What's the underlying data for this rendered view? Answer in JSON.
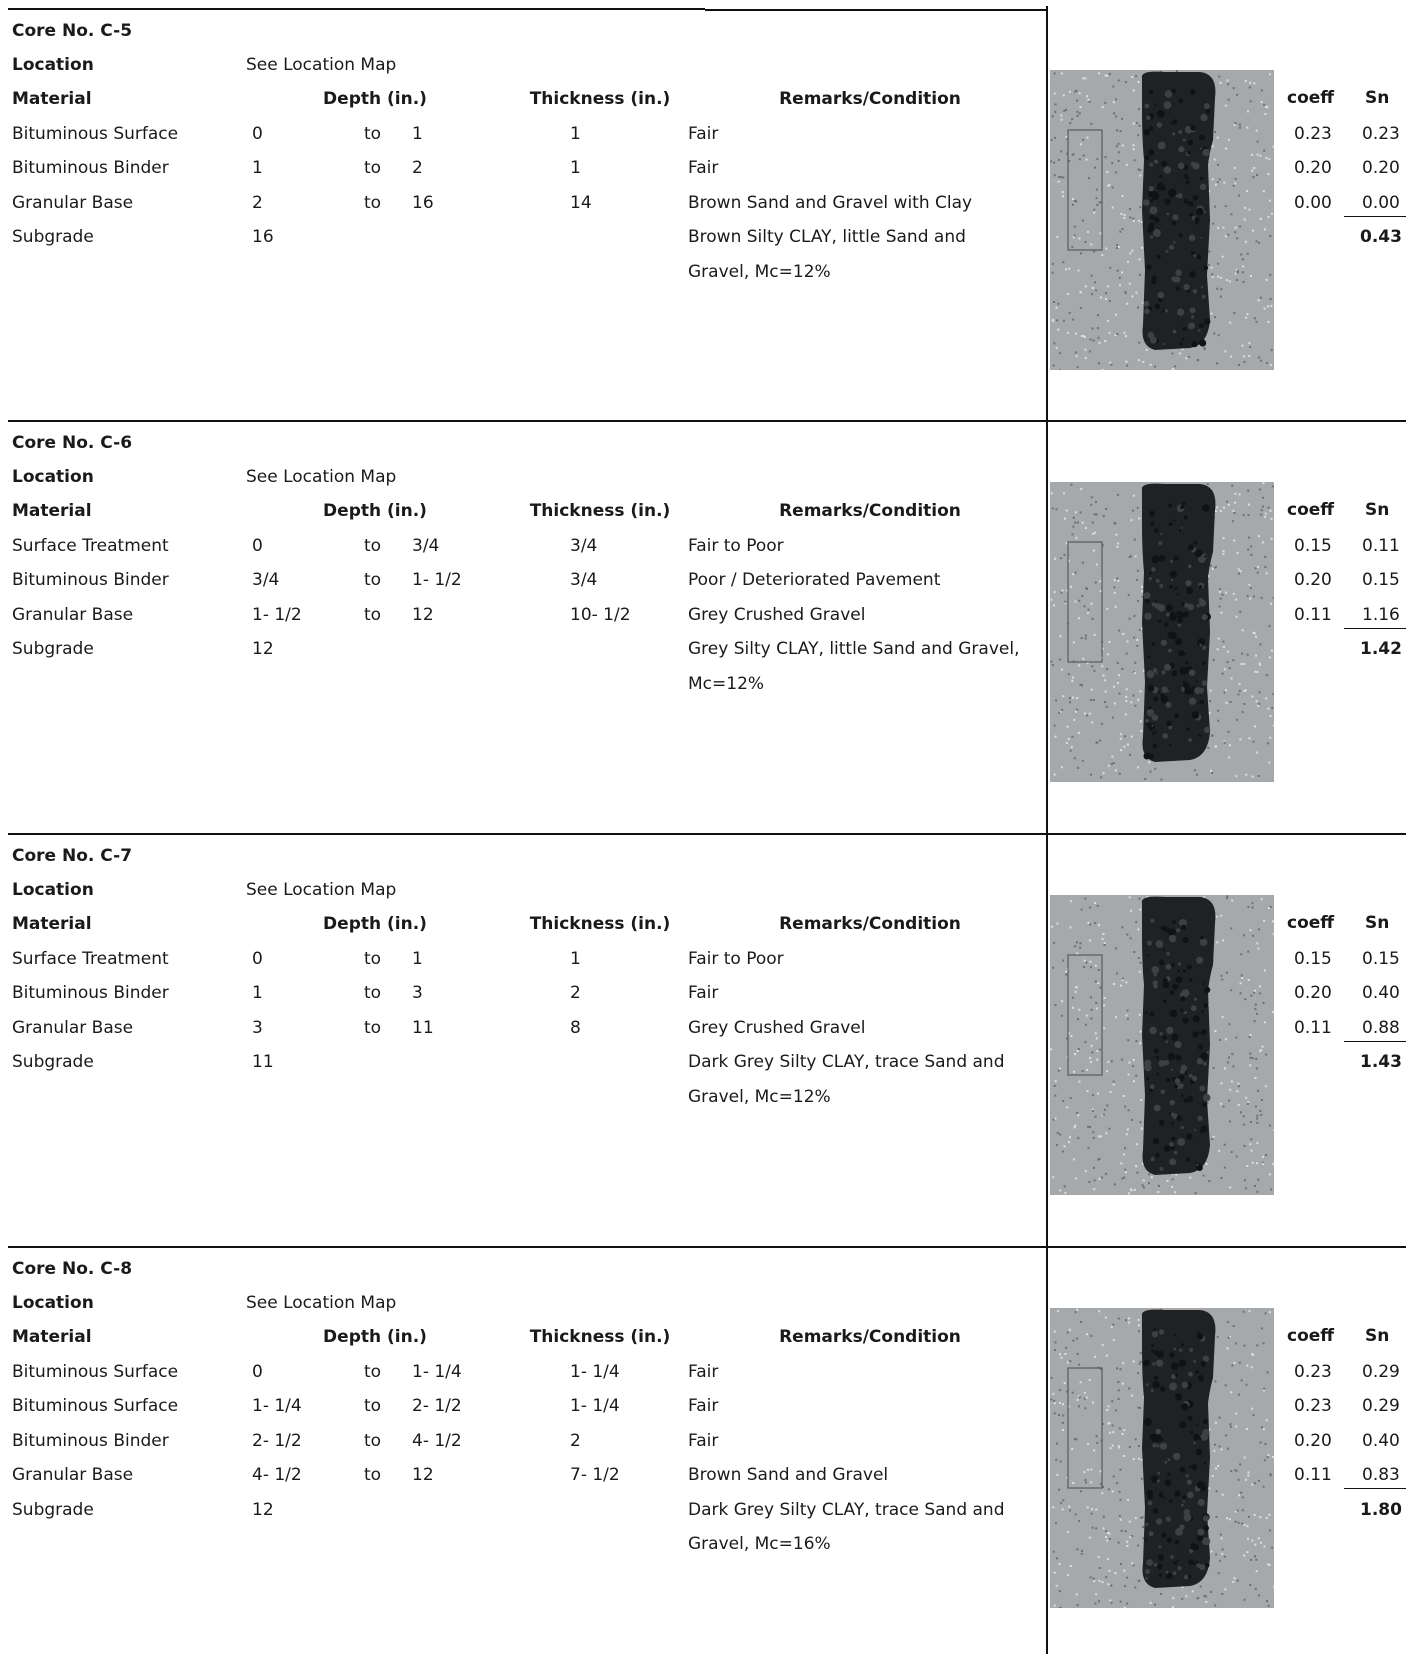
{
  "headers": {
    "location_label": "Location",
    "material_label": "Material",
    "depth_label": "Depth (in.)",
    "thickness_label": "Thickness (in.)",
    "remarks_label": "Remarks/Condition",
    "coeff_label": "coeff",
    "sn_label": "Sn"
  },
  "cores": [
    {
      "title": "Core No. C-5",
      "location": "See Location Map",
      "layers": [
        {
          "material": "Bituminous Surface",
          "from": "0",
          "to_word": "to",
          "to": "1",
          "thickness": "1",
          "remarks": [
            "Fair"
          ],
          "coeff": "0.23",
          "sn": "0.23"
        },
        {
          "material": "Bituminous Binder",
          "from": "1",
          "to_word": "to",
          "to": "2",
          "thickness": "1",
          "remarks": [
            "Fair"
          ],
          "coeff": "0.20",
          "sn": "0.20"
        },
        {
          "material": "Granular Base",
          "from": "2",
          "to_word": "to",
          "to": "16",
          "thickness": "14",
          "remarks": [
            "Brown Sand and Gravel with Clay"
          ],
          "coeff": "0.00",
          "sn": "0.00"
        },
        {
          "material": "Subgrade",
          "from": "16",
          "to_word": "",
          "to": "",
          "thickness": "",
          "remarks": [
            "Brown Silty CLAY, little Sand and",
            "Gravel, Mc=12%"
          ],
          "coeff": "",
          "sn": ""
        }
      ],
      "total_sn": "0.43"
    },
    {
      "title": "Core No. C-6",
      "location": "See Location Map",
      "layers": [
        {
          "material": "Surface Treatment",
          "from": "0",
          "to_word": "to",
          "to": "3/4",
          "thickness": "3/4",
          "remarks": [
            "Fair to Poor"
          ],
          "coeff": "0.15",
          "sn": "0.11"
        },
        {
          "material": "Bituminous Binder",
          "from": "3/4",
          "to_word": "to",
          "to": "1- 1/2",
          "thickness": "3/4",
          "remarks": [
            "Poor / Deteriorated Pavement"
          ],
          "coeff": "0.20",
          "sn": "0.15"
        },
        {
          "material": "Granular Base",
          "from": "1- 1/2",
          "to_word": "to",
          "to": "12",
          "thickness": "10- 1/2",
          "remarks": [
            "Grey Crushed Gravel"
          ],
          "coeff": "0.11",
          "sn": "1.16"
        },
        {
          "material": "Subgrade",
          "from": "12",
          "to_word": "",
          "to": "",
          "thickness": "",
          "remarks": [
            "Grey Silty CLAY, little Sand and Gravel,",
            "Mc=12%"
          ],
          "coeff": "",
          "sn": ""
        }
      ],
      "total_sn": "1.42"
    },
    {
      "title": "Core No. C-7",
      "location": "See Location Map",
      "layers": [
        {
          "material": "Surface Treatment",
          "from": "0",
          "to_word": "to",
          "to": "1",
          "thickness": "1",
          "remarks": [
            "Fair to Poor"
          ],
          "coeff": "0.15",
          "sn": "0.15"
        },
        {
          "material": "Bituminous Binder",
          "from": "1",
          "to_word": "to",
          "to": "3",
          "thickness": "2",
          "remarks": [
            "Fair"
          ],
          "coeff": "0.20",
          "sn": "0.40"
        },
        {
          "material": "Granular Base",
          "from": "3",
          "to_word": "to",
          "to": "11",
          "thickness": "8",
          "remarks": [
            "Grey Crushed Gravel"
          ],
          "coeff": "0.11",
          "sn": "0.88"
        },
        {
          "material": "Subgrade",
          "from": "11",
          "to_word": "",
          "to": "",
          "thickness": "",
          "remarks": [
            "Dark Grey Silty CLAY, trace Sand and",
            "Gravel, Mc=12%"
          ],
          "coeff": "",
          "sn": ""
        }
      ],
      "total_sn": "1.43"
    },
    {
      "title": "Core No. C-8",
      "location": "See Location Map",
      "layers": [
        {
          "material": "Bituminous Surface",
          "from": "0",
          "to_word": "to",
          "to": "1- 1/4",
          "thickness": "1- 1/4",
          "remarks": [
            "Fair"
          ],
          "coeff": "0.23",
          "sn": "0.29"
        },
        {
          "material": "Bituminous Surface",
          "from": "1- 1/4",
          "to_word": "to",
          "to": "2- 1/2",
          "thickness": "1- 1/4",
          "remarks": [
            "Fair"
          ],
          "coeff": "0.23",
          "sn": "0.29"
        },
        {
          "material": "Bituminous Binder",
          "from": "2- 1/2",
          "to_word": "to",
          "to": "4- 1/2",
          "thickness": "2",
          "remarks": [
            "Fair"
          ],
          "coeff": "0.20",
          "sn": "0.40"
        },
        {
          "material": "Granular Base",
          "from": "4- 1/2",
          "to_word": "to",
          "to": "12",
          "thickness": "7- 1/2",
          "remarks": [
            "Brown Sand and Gravel"
          ],
          "coeff": "0.11",
          "sn": "0.83"
        },
        {
          "material": "Subgrade",
          "from": "12",
          "to_word": "",
          "to": "",
          "thickness": "",
          "remarks": [
            "Dark Grey Silty CLAY, trace Sand and",
            "Gravel, Mc=16%"
          ],
          "coeff": "",
          "sn": ""
        }
      ],
      "total_sn": "1.80"
    }
  ]
}
